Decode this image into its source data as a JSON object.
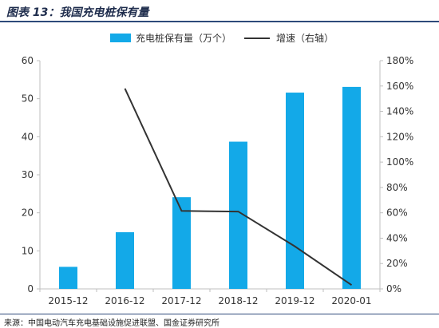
{
  "header": {
    "title": "图表 13：我国充电桩保有量"
  },
  "source": {
    "text": "来源：中国电动汽车充电基础设施促进联盟、国金证券研究所"
  },
  "colors": {
    "bar": "#13a9e8",
    "line": "#333333",
    "axis": "#bfbfbf",
    "title": "#1f2d4d"
  },
  "chart_data": {
    "type": "bar",
    "title": "",
    "categories": [
      "2015-12",
      "2016-12",
      "2017-12",
      "2018-12",
      "2019-12",
      "2020-01"
    ],
    "series": [
      {
        "name": "充电桩保有量（万个）",
        "type": "bar",
        "axis": "left",
        "values": [
          5.8,
          14.9,
          24.1,
          38.7,
          51.6,
          53.1
        ]
      },
      {
        "name": "增速（右轴）",
        "type": "line",
        "axis": "right",
        "values": [
          null,
          1.58,
          0.615,
          0.61,
          0.335,
          0.03
        ]
      }
    ],
    "y_left": {
      "min": 0,
      "max": 60,
      "ticks": [
        0,
        10,
        20,
        30,
        40,
        50,
        60
      ]
    },
    "y_right": {
      "min": 0,
      "max": 1.8,
      "ticks": [
        "0%",
        "20%",
        "40%",
        "60%",
        "80%",
        "100%",
        "120%",
        "140%",
        "160%",
        "180%"
      ]
    },
    "legend_position": "top",
    "grid": false
  }
}
